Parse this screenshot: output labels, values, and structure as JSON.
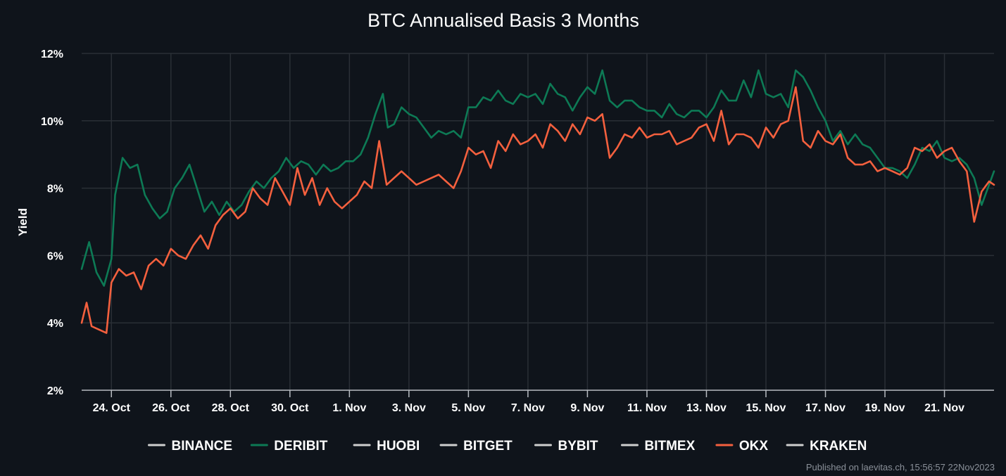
{
  "colors": {
    "background": "#0f141b",
    "grid": "#2a2f36",
    "axis": "#b8bcc2",
    "inactive_series": "#cfcfcf",
    "deribit": "#0d7a55",
    "okx": "#f4603e"
  },
  "footer_text": "Published on laevitas.ch, 15:56:57 22Nov2023",
  "chart_data": {
    "type": "line",
    "title": "BTC Annualised Basis 3 Months",
    "xlabel": "",
    "ylabel": "Yield",
    "ylim": [
      2,
      12
    ],
    "xlim": [
      "2023-10-23",
      "2023-11-22 16:00"
    ],
    "yticks": [
      {
        "value": 2,
        "label": "2%"
      },
      {
        "value": 4,
        "label": "4%"
      },
      {
        "value": 6,
        "label": "6%"
      },
      {
        "value": 8,
        "label": "8%"
      },
      {
        "value": 10,
        "label": "10%"
      },
      {
        "value": 12,
        "label": "12%"
      }
    ],
    "xticks": [
      {
        "date": "2023-10-24",
        "label": "24. Oct"
      },
      {
        "date": "2023-10-26",
        "label": "26. Oct"
      },
      {
        "date": "2023-10-28",
        "label": "28. Oct"
      },
      {
        "date": "2023-10-30",
        "label": "30. Oct"
      },
      {
        "date": "2023-11-01",
        "label": "1. Nov"
      },
      {
        "date": "2023-11-03",
        "label": "3. Nov"
      },
      {
        "date": "2023-11-05",
        "label": "5. Nov"
      },
      {
        "date": "2023-11-07",
        "label": "7. Nov"
      },
      {
        "date": "2023-11-09",
        "label": "9. Nov"
      },
      {
        "date": "2023-11-11",
        "label": "11. Nov"
      },
      {
        "date": "2023-11-13",
        "label": "13. Nov"
      },
      {
        "date": "2023-11-15",
        "label": "15. Nov"
      },
      {
        "date": "2023-11-17",
        "label": "17. Nov"
      },
      {
        "date": "2023-11-19",
        "label": "19. Nov"
      },
      {
        "date": "2023-11-21",
        "label": "21. Nov"
      }
    ],
    "grid": true,
    "legend_position": "bottom-center",
    "legend": [
      {
        "name": "BINANCE",
        "active": false
      },
      {
        "name": "DERIBIT",
        "active": true
      },
      {
        "name": "HUOBI",
        "active": false
      },
      {
        "name": "BITGET",
        "active": false
      },
      {
        "name": "BYBIT",
        "active": false
      },
      {
        "name": "BITMEX",
        "active": false
      },
      {
        "name": "OKX",
        "active": true
      },
      {
        "name": "KRAKEN",
        "active": false
      }
    ],
    "series": [
      {
        "name": "DERIBIT",
        "x": [
          "2023-10-23 00:00",
          "2023-10-23 06:00",
          "2023-10-23 12:00",
          "2023-10-23 18:00",
          "2023-10-24 00:00",
          "2023-10-24 03:00",
          "2023-10-24 09:00",
          "2023-10-24 15:00",
          "2023-10-24 21:00",
          "2023-10-25 03:00",
          "2023-10-25 09:00",
          "2023-10-25 15:00",
          "2023-10-25 21:00",
          "2023-10-26 03:00",
          "2023-10-26 09:00",
          "2023-10-26 15:00",
          "2023-10-26 21:00",
          "2023-10-27 03:00",
          "2023-10-27 09:00",
          "2023-10-27 15:00",
          "2023-10-27 21:00",
          "2023-10-28 03:00",
          "2023-10-28 09:00",
          "2023-10-28 15:00",
          "2023-10-28 21:00",
          "2023-10-29 03:00",
          "2023-10-29 09:00",
          "2023-10-29 15:00",
          "2023-10-29 21:00",
          "2023-10-30 03:00",
          "2023-10-30 09:00",
          "2023-10-30 15:00",
          "2023-10-30 21:00",
          "2023-10-31 03:00",
          "2023-10-31 09:00",
          "2023-10-31 15:00",
          "2023-10-31 21:00",
          "2023-11-01 03:00",
          "2023-11-01 09:00",
          "2023-11-01 15:00",
          "2023-11-01 21:00",
          "2023-11-02 03:00",
          "2023-11-02 07:00",
          "2023-11-02 12:00",
          "2023-11-02 18:00",
          "2023-11-03 00:00",
          "2023-11-03 06:00",
          "2023-11-03 12:00",
          "2023-11-03 18:00",
          "2023-11-04 00:00",
          "2023-11-04 06:00",
          "2023-11-04 12:00",
          "2023-11-04 18:00",
          "2023-11-05 00:00",
          "2023-11-05 06:00",
          "2023-11-05 12:00",
          "2023-11-05 18:00",
          "2023-11-06 00:00",
          "2023-11-06 06:00",
          "2023-11-06 12:00",
          "2023-11-06 18:00",
          "2023-11-07 00:00",
          "2023-11-07 06:00",
          "2023-11-07 12:00",
          "2023-11-07 18:00",
          "2023-11-08 00:00",
          "2023-11-08 06:00",
          "2023-11-08 12:00",
          "2023-11-08 18:00",
          "2023-11-09 00:00",
          "2023-11-09 06:00",
          "2023-11-09 12:00",
          "2023-11-09 18:00",
          "2023-11-10 00:00",
          "2023-11-10 06:00",
          "2023-11-10 12:00",
          "2023-11-10 18:00",
          "2023-11-11 00:00",
          "2023-11-11 06:00",
          "2023-11-11 12:00",
          "2023-11-11 18:00",
          "2023-11-12 00:00",
          "2023-11-12 06:00",
          "2023-11-12 12:00",
          "2023-11-12 18:00",
          "2023-11-13 00:00",
          "2023-11-13 06:00",
          "2023-11-13 12:00",
          "2023-11-13 18:00",
          "2023-11-14 00:00",
          "2023-11-14 06:00",
          "2023-11-14 12:00",
          "2023-11-14 18:00",
          "2023-11-15 00:00",
          "2023-11-15 06:00",
          "2023-11-15 12:00",
          "2023-11-15 18:00",
          "2023-11-16 00:00",
          "2023-11-16 06:00",
          "2023-11-16 12:00",
          "2023-11-16 18:00",
          "2023-11-17 00:00",
          "2023-11-17 06:00",
          "2023-11-17 12:00",
          "2023-11-17 18:00",
          "2023-11-18 00:00",
          "2023-11-18 06:00",
          "2023-11-18 12:00",
          "2023-11-18 18:00",
          "2023-11-19 00:00",
          "2023-11-19 06:00",
          "2023-11-19 12:00",
          "2023-11-19 18:00",
          "2023-11-20 00:00",
          "2023-11-20 06:00",
          "2023-11-20 12:00",
          "2023-11-20 18:00",
          "2023-11-21 00:00",
          "2023-11-21 06:00",
          "2023-11-21 12:00",
          "2023-11-21 18:00",
          "2023-11-22 00:00",
          "2023-11-22 06:00",
          "2023-11-22 12:00",
          "2023-11-22 16:00"
        ],
        "y": [
          5.6,
          6.4,
          5.5,
          5.1,
          5.9,
          7.8,
          8.9,
          8.6,
          8.7,
          7.8,
          7.4,
          7.1,
          7.3,
          8.0,
          8.3,
          8.7,
          8.0,
          7.3,
          7.6,
          7.2,
          7.6,
          7.3,
          7.5,
          7.9,
          8.2,
          8.0,
          8.3,
          8.5,
          8.9,
          8.6,
          8.8,
          8.7,
          8.4,
          8.7,
          8.5,
          8.6,
          8.8,
          8.8,
          9.0,
          9.5,
          10.2,
          10.8,
          9.8,
          9.9,
          10.4,
          10.2,
          10.1,
          9.8,
          9.5,
          9.7,
          9.6,
          9.7,
          9.5,
          10.4,
          10.4,
          10.7,
          10.6,
          10.9,
          10.6,
          10.5,
          10.8,
          10.7,
          10.8,
          10.5,
          11.1,
          10.8,
          10.7,
          10.3,
          10.7,
          11.0,
          10.8,
          11.5,
          10.6,
          10.4,
          10.6,
          10.6,
          10.4,
          10.3,
          10.3,
          10.1,
          10.5,
          10.2,
          10.1,
          10.3,
          10.3,
          10.1,
          10.4,
          10.9,
          10.6,
          10.6,
          11.2,
          10.7,
          11.5,
          10.8,
          10.7,
          10.8,
          10.4,
          11.5,
          11.3,
          10.9,
          10.4,
          10.0,
          9.4,
          9.7,
          9.3,
          9.6,
          9.3,
          9.2,
          8.9,
          8.6,
          8.6,
          8.5,
          8.3,
          8.7,
          9.2,
          9.1,
          9.4,
          8.9,
          8.8,
          8.9,
          8.7,
          8.3,
          7.5,
          8.1,
          8.5
        ]
      },
      {
        "name": "OKX",
        "x": [
          "2023-10-23 00:00",
          "2023-10-23 04:00",
          "2023-10-23 08:00",
          "2023-10-23 14:00",
          "2023-10-23 20:00",
          "2023-10-24 00:00",
          "2023-10-24 06:00",
          "2023-10-24 12:00",
          "2023-10-24 18:00",
          "2023-10-25 00:00",
          "2023-10-25 06:00",
          "2023-10-25 12:00",
          "2023-10-25 18:00",
          "2023-10-26 00:00",
          "2023-10-26 06:00",
          "2023-10-26 12:00",
          "2023-10-26 18:00",
          "2023-10-27 00:00",
          "2023-10-27 06:00",
          "2023-10-27 12:00",
          "2023-10-27 18:00",
          "2023-10-28 00:00",
          "2023-10-28 06:00",
          "2023-10-28 12:00",
          "2023-10-28 18:00",
          "2023-10-29 00:00",
          "2023-10-29 06:00",
          "2023-10-29 12:00",
          "2023-10-29 18:00",
          "2023-10-30 00:00",
          "2023-10-30 06:00",
          "2023-10-30 12:00",
          "2023-10-30 18:00",
          "2023-10-31 00:00",
          "2023-10-31 06:00",
          "2023-10-31 12:00",
          "2023-10-31 18:00",
          "2023-11-01 00:00",
          "2023-11-01 06:00",
          "2023-11-01 12:00",
          "2023-11-01 18:00",
          "2023-11-02 00:00",
          "2023-11-02 06:00",
          "2023-11-02 12:00",
          "2023-11-02 18:00",
          "2023-11-03 00:00",
          "2023-11-03 06:00",
          "2023-11-03 12:00",
          "2023-11-03 18:00",
          "2023-11-04 00:00",
          "2023-11-04 06:00",
          "2023-11-04 12:00",
          "2023-11-04 18:00",
          "2023-11-05 00:00",
          "2023-11-05 06:00",
          "2023-11-05 12:00",
          "2023-11-05 18:00",
          "2023-11-06 00:00",
          "2023-11-06 06:00",
          "2023-11-06 12:00",
          "2023-11-06 18:00",
          "2023-11-07 00:00",
          "2023-11-07 06:00",
          "2023-11-07 12:00",
          "2023-11-07 18:00",
          "2023-11-08 00:00",
          "2023-11-08 06:00",
          "2023-11-08 12:00",
          "2023-11-08 18:00",
          "2023-11-09 00:00",
          "2023-11-09 06:00",
          "2023-11-09 12:00",
          "2023-11-09 18:00",
          "2023-11-10 00:00",
          "2023-11-10 06:00",
          "2023-11-10 12:00",
          "2023-11-10 18:00",
          "2023-11-11 00:00",
          "2023-11-11 06:00",
          "2023-11-11 12:00",
          "2023-11-11 18:00",
          "2023-11-12 00:00",
          "2023-11-12 06:00",
          "2023-11-12 12:00",
          "2023-11-12 18:00",
          "2023-11-13 00:00",
          "2023-11-13 06:00",
          "2023-11-13 12:00",
          "2023-11-13 18:00",
          "2023-11-14 00:00",
          "2023-11-14 06:00",
          "2023-11-14 12:00",
          "2023-11-14 18:00",
          "2023-11-15 00:00",
          "2023-11-15 06:00",
          "2023-11-15 12:00",
          "2023-11-15 18:00",
          "2023-11-16 00:00",
          "2023-11-16 06:00",
          "2023-11-16 12:00",
          "2023-11-16 18:00",
          "2023-11-17 00:00",
          "2023-11-17 06:00",
          "2023-11-17 12:00",
          "2023-11-17 18:00",
          "2023-11-18 00:00",
          "2023-11-18 06:00",
          "2023-11-18 12:00",
          "2023-11-18 18:00",
          "2023-11-19 00:00",
          "2023-11-19 06:00",
          "2023-11-19 12:00",
          "2023-11-19 18:00",
          "2023-11-20 00:00",
          "2023-11-20 06:00",
          "2023-11-20 12:00",
          "2023-11-20 18:00",
          "2023-11-21 00:00",
          "2023-11-21 06:00",
          "2023-11-21 12:00",
          "2023-11-21 18:00",
          "2023-11-22 00:00",
          "2023-11-22 06:00",
          "2023-11-22 12:00",
          "2023-11-22 16:00"
        ],
        "y": [
          4.0,
          4.6,
          3.9,
          3.8,
          3.7,
          5.2,
          5.6,
          5.4,
          5.5,
          5.0,
          5.7,
          5.9,
          5.7,
          6.2,
          6.0,
          5.9,
          6.3,
          6.6,
          6.2,
          6.9,
          7.2,
          7.4,
          7.1,
          7.3,
          8.0,
          7.7,
          7.5,
          8.3,
          7.9,
          7.5,
          8.6,
          7.8,
          8.3,
          7.5,
          8.0,
          7.6,
          7.4,
          7.6,
          7.8,
          8.2,
          8.0,
          9.4,
          8.1,
          8.3,
          8.5,
          8.3,
          8.1,
          8.2,
          8.3,
          8.4,
          8.2,
          8.0,
          8.5,
          9.2,
          9.0,
          9.1,
          8.6,
          9.4,
          9.1,
          9.6,
          9.3,
          9.4,
          9.6,
          9.2,
          9.9,
          9.7,
          9.4,
          9.9,
          9.6,
          10.1,
          10.0,
          10.2,
          8.9,
          9.2,
          9.6,
          9.5,
          9.8,
          9.5,
          9.6,
          9.6,
          9.7,
          9.3,
          9.4,
          9.5,
          9.8,
          9.9,
          9.4,
          10.3,
          9.3,
          9.6,
          9.6,
          9.5,
          9.2,
          9.8,
          9.5,
          9.9,
          10.0,
          11.0,
          9.4,
          9.2,
          9.7,
          9.4,
          9.3,
          9.6,
          8.9,
          8.7,
          8.7,
          8.8,
          8.5,
          8.6,
          8.5,
          8.4,
          8.6,
          9.2,
          9.1,
          9.3,
          8.9,
          9.1,
          9.2,
          8.8,
          8.5,
          7.0,
          7.9,
          8.2,
          8.1
        ]
      }
    ]
  }
}
